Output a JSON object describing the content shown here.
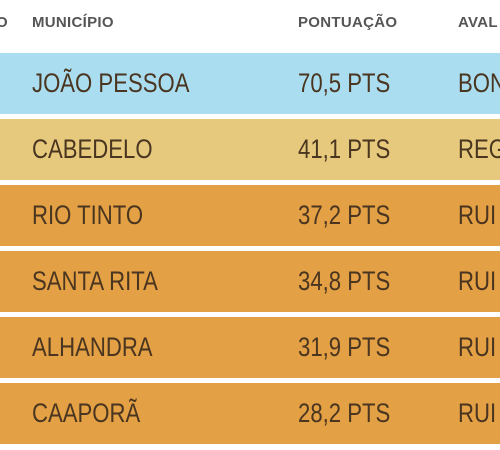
{
  "header": {
    "rank_label": "O",
    "municipio_label": "MUNICÍPIO",
    "pontuacao_label": "PONTUAÇÃO",
    "avaliacao_label": "AVAL"
  },
  "colors": {
    "bom": "#a9ddef",
    "regular": "#e6c97c",
    "ruim": "#e3a044",
    "text": "#4a3520"
  },
  "chart_data": {
    "type": "table",
    "columns": [
      "MUNICÍPIO",
      "PONTUAÇÃO",
      "AVAL"
    ],
    "rows": [
      {
        "municipio": "JOÃO PESSOA",
        "pontuacao": "70,5 PTS",
        "avaliacao": "BON",
        "color": "#a9ddef"
      },
      {
        "municipio": "CABEDELO",
        "pontuacao": "41,1 PTS",
        "avaliacao": "REG",
        "color": "#e6c97c"
      },
      {
        "municipio": "RIO TINTO",
        "pontuacao": "37,2 PTS",
        "avaliacao": "RUI",
        "color": "#e3a044"
      },
      {
        "municipio": "SANTA RITA",
        "pontuacao": "34,8 PTS",
        "avaliacao": "RUI",
        "color": "#e3a044"
      },
      {
        "municipio": "ALHANDRA",
        "pontuacao": "31,9 PTS",
        "avaliacao": "RUI",
        "color": "#e3a044"
      },
      {
        "municipio": "CAAPORÃ",
        "pontuacao": "28,2 PTS",
        "avaliacao": "RUI",
        "color": "#e3a044"
      }
    ]
  }
}
